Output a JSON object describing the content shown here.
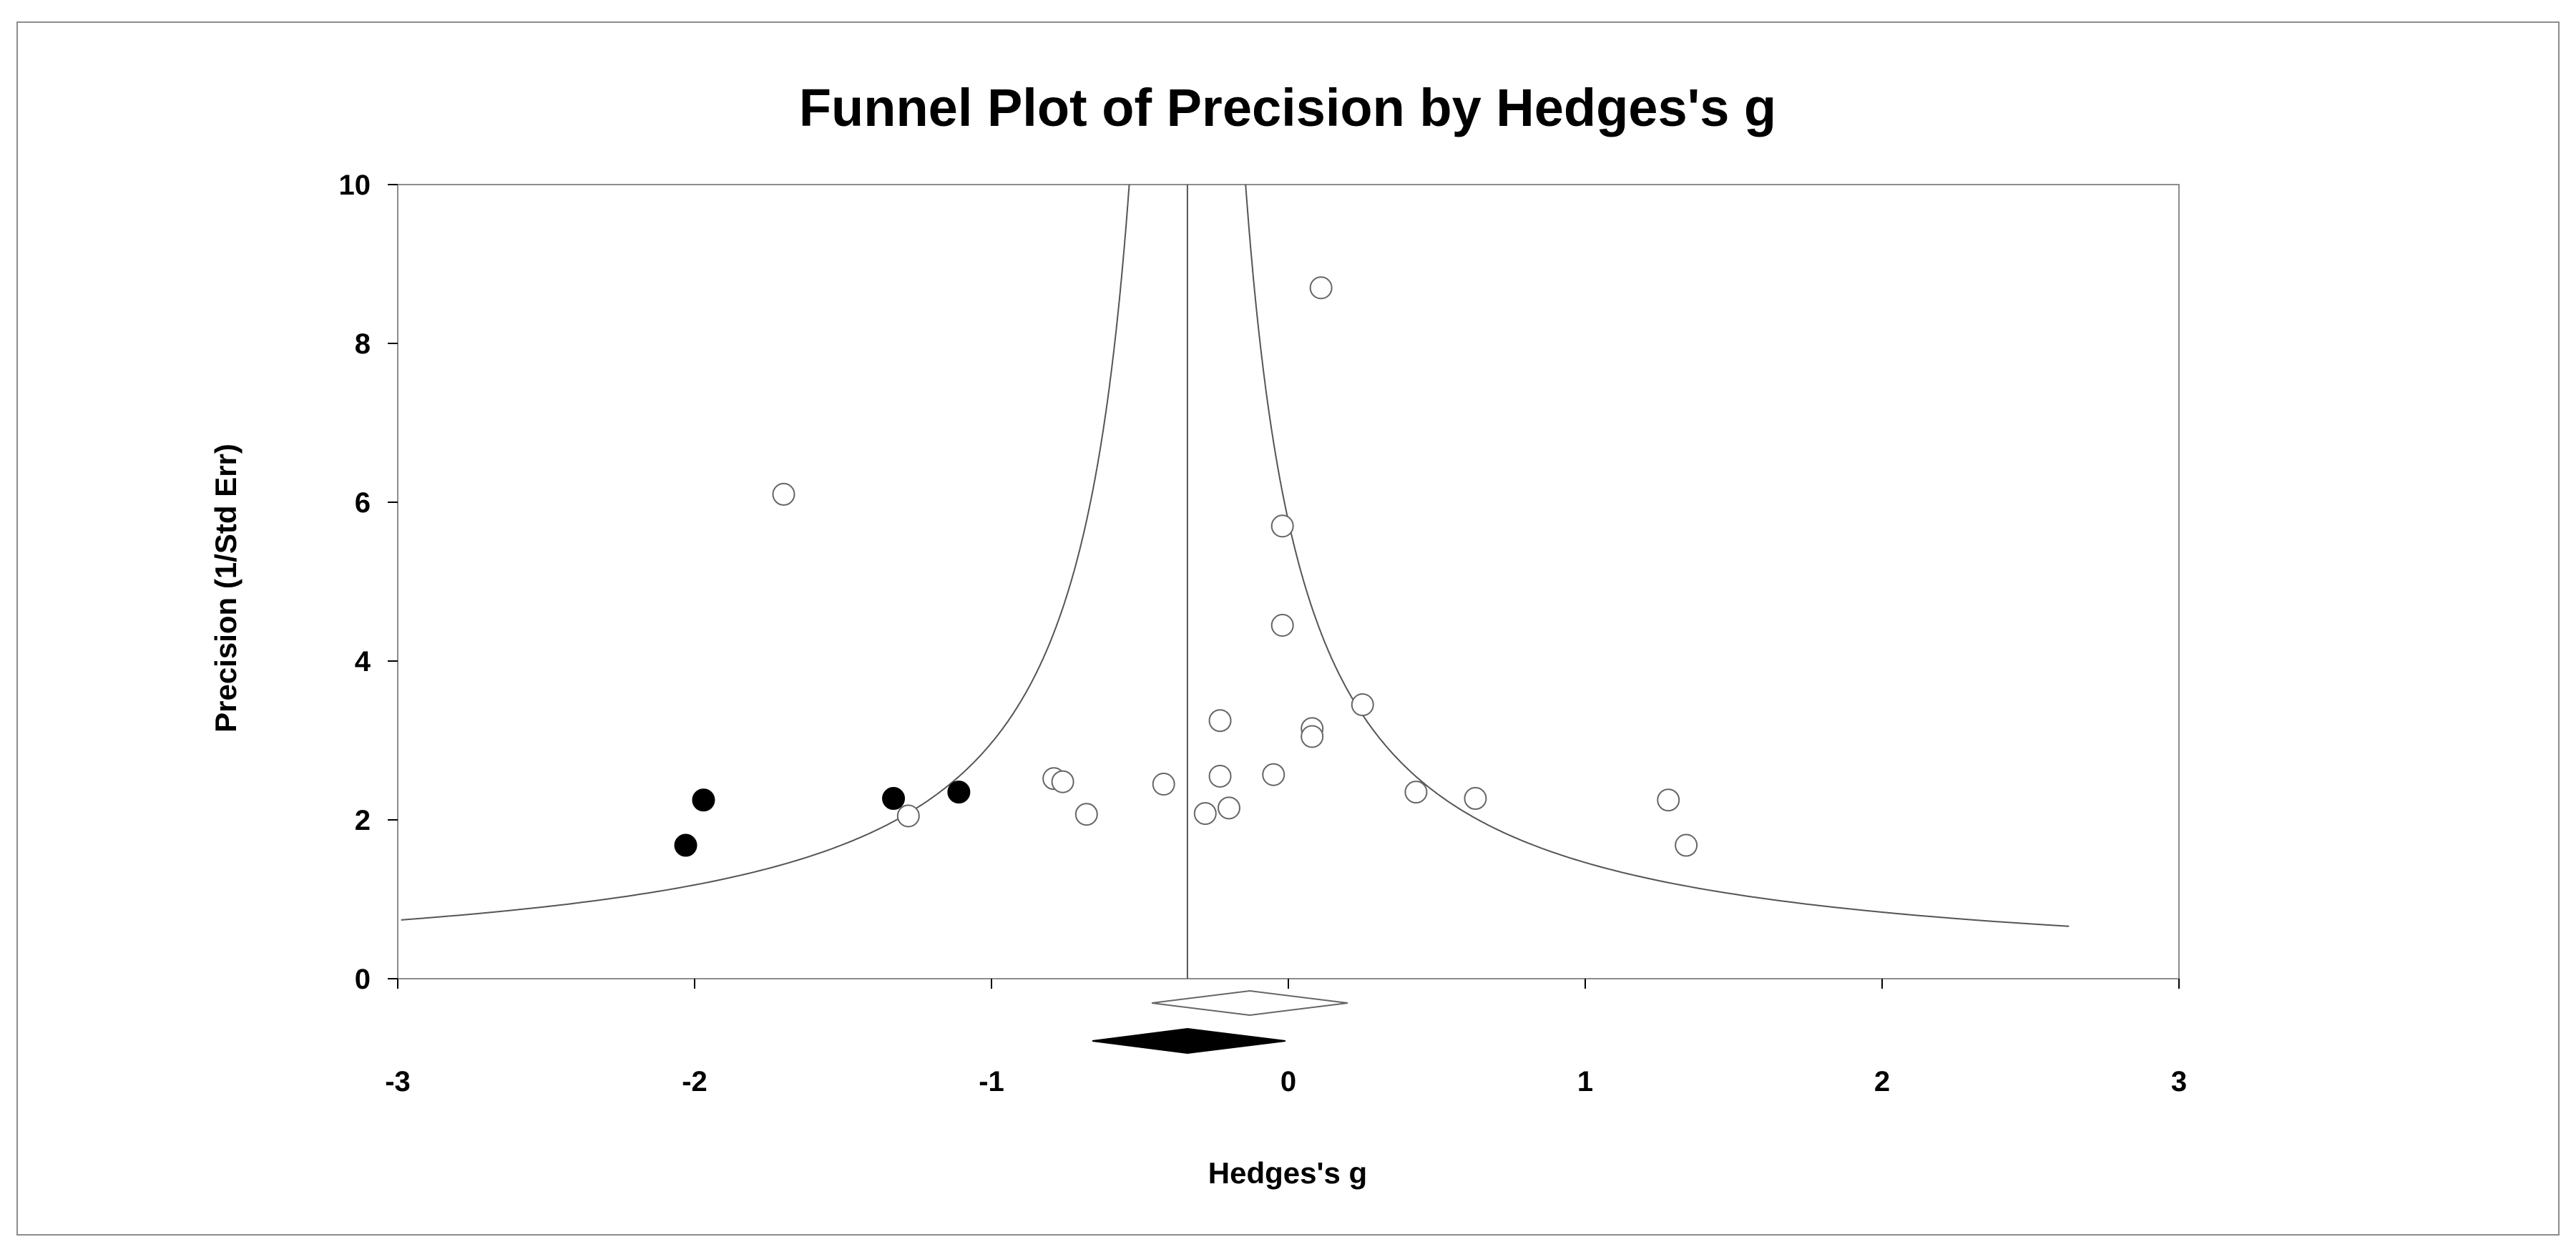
{
  "chart_data": {
    "type": "scatter",
    "title": "Funnel Plot of Precision by Hedges's g",
    "xlabel": "Hedges's g",
    "ylabel": "Precision (1/Std Err)",
    "xlim": [
      -3,
      3
    ],
    "ylim": [
      0,
      10
    ],
    "x_ticks": [
      "-3",
      "-2",
      "-1",
      "0",
      "1",
      "2",
      "3"
    ],
    "y_ticks": [
      "0",
      "2",
      "4",
      "6",
      "8",
      "10"
    ],
    "grid": false,
    "legend": "none",
    "pooled_effect_line": -0.34,
    "funnel": {
      "center": -0.34,
      "z": 1.96
    },
    "series": [
      {
        "marker": "open-circle",
        "points": [
          {
            "x": 0.11,
            "y": 8.7
          },
          {
            "x": -1.7,
            "y": 6.1
          },
          {
            "x": -0.02,
            "y": 5.7
          },
          {
            "x": -0.02,
            "y": 4.45
          },
          {
            "x": 0.25,
            "y": 3.45
          },
          {
            "x": -0.23,
            "y": 3.25
          },
          {
            "x": 0.08,
            "y": 3.15
          },
          {
            "x": 0.08,
            "y": 3.05
          },
          {
            "x": -0.05,
            "y": 2.57
          },
          {
            "x": -0.23,
            "y": 2.55
          },
          {
            "x": -0.79,
            "y": 2.52
          },
          {
            "x": -0.76,
            "y": 2.48
          },
          {
            "x": -0.42,
            "y": 2.45
          },
          {
            "x": 0.43,
            "y": 2.35
          },
          {
            "x": 0.63,
            "y": 2.27
          },
          {
            "x": 1.28,
            "y": 2.25
          },
          {
            "x": -0.2,
            "y": 2.15
          },
          {
            "x": -0.28,
            "y": 2.08
          },
          {
            "x": -0.68,
            "y": 2.07
          },
          {
            "x": -1.28,
            "y": 2.05
          },
          {
            "x": 1.34,
            "y": 1.68
          }
        ]
      },
      {
        "marker": "filled-circle",
        "points": [
          {
            "x": -1.97,
            "y": 2.25
          },
          {
            "x": -1.33,
            "y": 2.27
          },
          {
            "x": -1.11,
            "y": 2.35
          },
          {
            "x": -2.03,
            "y": 1.68
          }
        ]
      }
    ],
    "summary_diamonds": [
      {
        "style": "open",
        "center": -0.13,
        "low": -0.46,
        "high": 0.2
      },
      {
        "style": "filled",
        "center": -0.34,
        "low": -0.66,
        "high": -0.01
      }
    ]
  }
}
